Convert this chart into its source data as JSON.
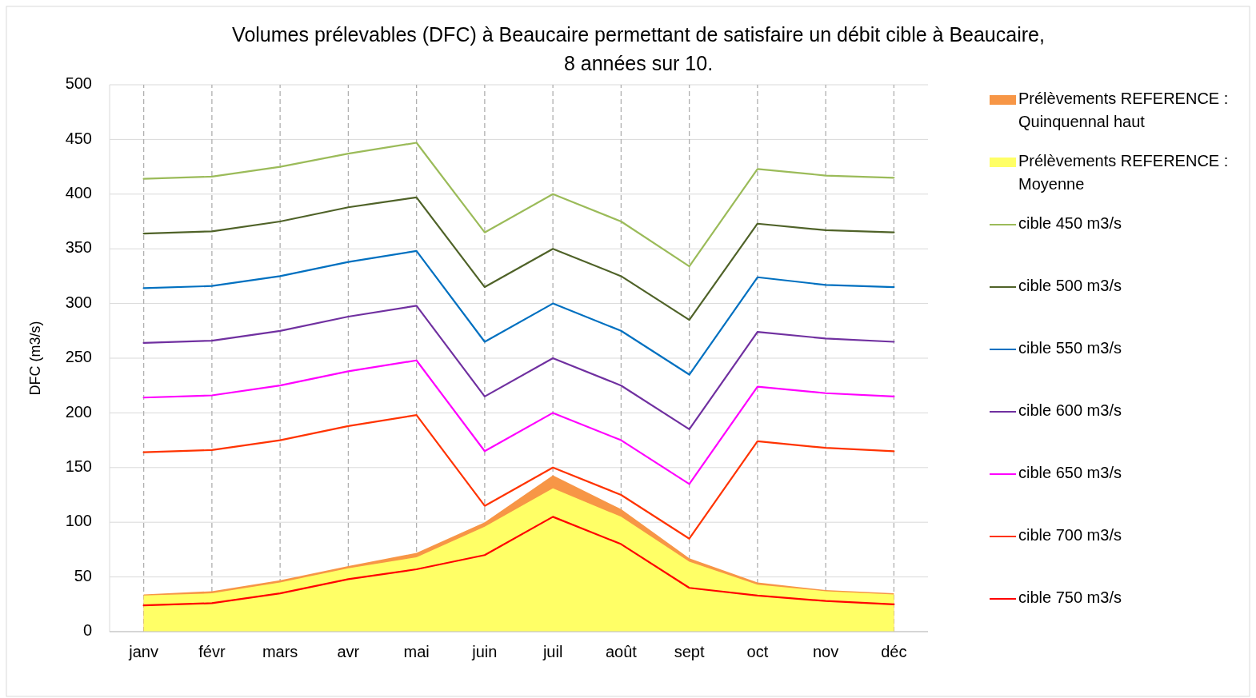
{
  "chart_data": {
    "type": "line",
    "title": "Volumes prélevables (DFC) à Beaucaire permettant de satisfaire un débit cible à Beaucaire,\n8 années sur 10.",
    "ylabel": "DFC (m3/s)",
    "categories": [
      "janv",
      "févr",
      "mars",
      "avr",
      "mai",
      "juin",
      "juil",
      "août",
      "sept",
      "oct",
      "nov",
      "déc"
    ],
    "ylim": [
      0,
      500
    ],
    "yticks": [
      0,
      50,
      100,
      150,
      200,
      250,
      300,
      350,
      400,
      450,
      500
    ],
    "grid": true,
    "legend": "right",
    "series": [
      {
        "name": "Prélèvements REFERENCE : Quinquennal haut",
        "type": "area",
        "color": "#f79646",
        "values": [
          34,
          37,
          47,
          60,
          72,
          100,
          143,
          112,
          67,
          45,
          38,
          35
        ]
      },
      {
        "name": "Prélèvements REFERENCE : Moyenne",
        "type": "area",
        "color": "#ffff66",
        "values": [
          33,
          35,
          45,
          58,
          68,
          96,
          131,
          105,
          64,
          43,
          37,
          34
        ]
      },
      {
        "name": "cible 450 m3/s",
        "color": "#9bbb59",
        "values": [
          414,
          416,
          425,
          437,
          447,
          365,
          400,
          375,
          334,
          423,
          417,
          415
        ]
      },
      {
        "name": "cible 500 m3/s",
        "color": "#4f6228",
        "values": [
          364,
          366,
          375,
          388,
          397,
          315,
          350,
          325,
          285,
          373,
          367,
          365
        ]
      },
      {
        "name": "cible 550 m3/s",
        "color": "#0070c0",
        "values": [
          314,
          316,
          325,
          338,
          348,
          265,
          300,
          275,
          235,
          324,
          317,
          315
        ]
      },
      {
        "name": "cible 600 m3/s",
        "color": "#7030a0",
        "values": [
          264,
          266,
          275,
          288,
          298,
          215,
          250,
          225,
          185,
          274,
          268,
          265
        ]
      },
      {
        "name": "cible 650 m3/s",
        "color": "#ff00ff",
        "values": [
          214,
          216,
          225,
          238,
          248,
          165,
          200,
          175,
          135,
          224,
          218,
          215
        ]
      },
      {
        "name": "cible 700 m3/s",
        "color": "#ff3300",
        "values": [
          164,
          166,
          175,
          188,
          198,
          115,
          150,
          125,
          85,
          174,
          168,
          165
        ]
      },
      {
        "name": "cible 750 m3/s",
        "color": "#ff0000",
        "values": [
          24,
          26,
          35,
          48,
          57,
          70,
          105,
          80,
          40,
          33,
          28,
          25
        ]
      }
    ]
  }
}
